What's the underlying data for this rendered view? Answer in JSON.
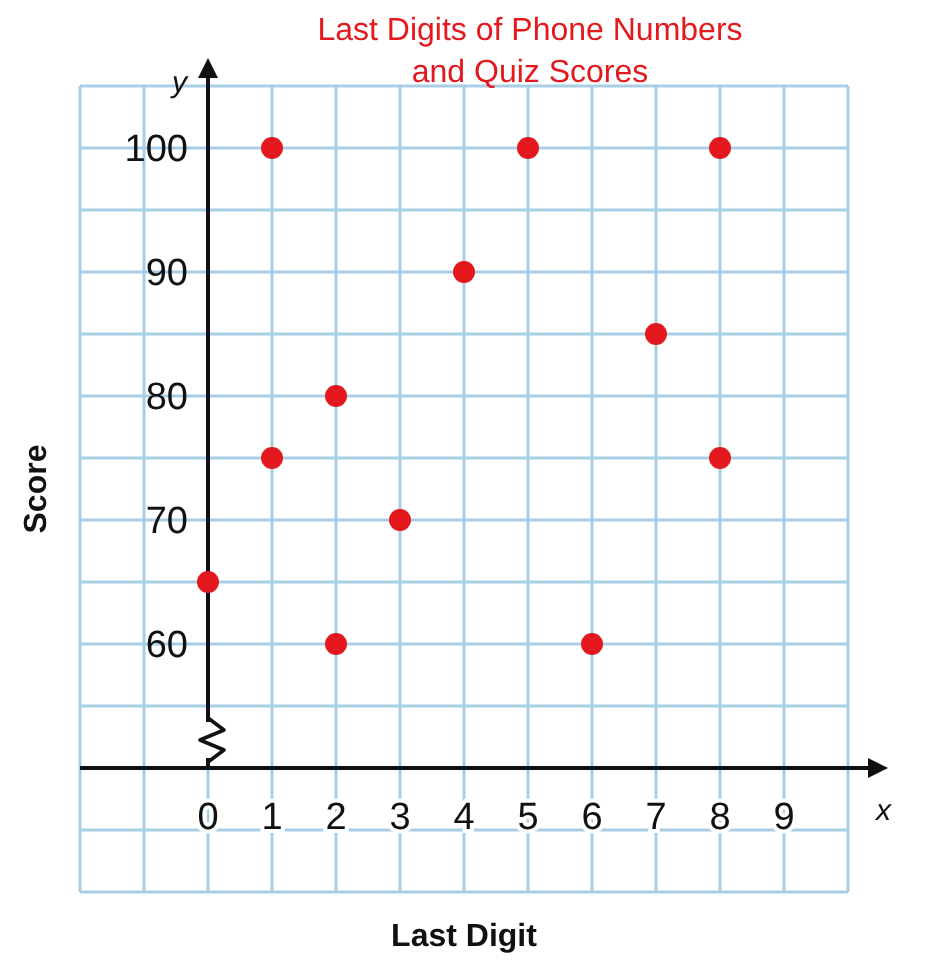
{
  "chart_data": {
    "type": "scatter",
    "title": "Last Digits of Phone Numbers and Quiz Scores",
    "xlabel": "Last Digit",
    "ylabel": "Score",
    "annotations": [
      "y",
      "x"
    ],
    "x": [
      0,
      1,
      1,
      2,
      2,
      3,
      4,
      5,
      6,
      7,
      8,
      8
    ],
    "values": [
      65,
      100,
      75,
      80,
      60,
      70,
      90,
      100,
      60,
      85,
      100,
      75
    ],
    "color": "#e3191e",
    "marker": "circle",
    "grid": true,
    "xlim": [
      -2,
      10
    ],
    "ylim": [
      40,
      105
    ],
    "xticks": [
      {
        "value": -2,
        "label": null
      },
      {
        "value": -1,
        "label": null
      },
      0,
      1,
      2,
      3,
      4,
      5,
      6,
      7,
      8,
      9,
      {
        "value": 10,
        "label": null
      }
    ],
    "yticks": [
      {
        "value": 40,
        "label": null
      },
      {
        "value": 45,
        "label": null
      },
      {
        "value": 50,
        "label": null
      },
      {
        "value": 55,
        "label": null
      },
      60,
      {
        "value": 65,
        "label": null
      },
      70,
      {
        "value": 75,
        "label": null
      },
      80,
      {
        "value": 85,
        "label": null
      },
      90,
      {
        "value": 95,
        "label": null
      },
      100,
      {
        "value": 105,
        "label": null
      }
    ]
  }
}
